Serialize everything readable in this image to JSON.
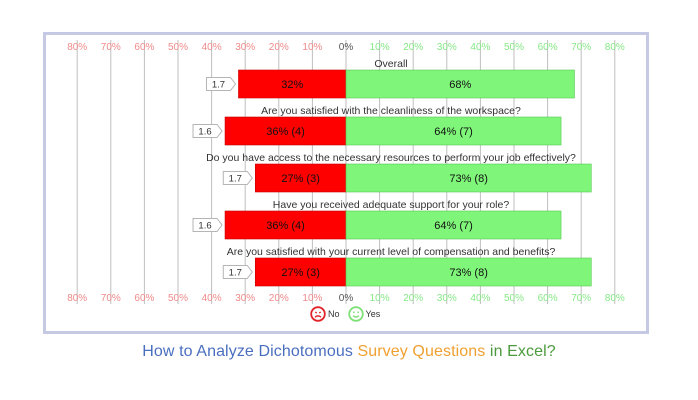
{
  "caption": {
    "part1": "How to Analyze Dichotomous ",
    "part2": "Survey Questions",
    "part3": " in Excel?"
  },
  "colors": {
    "no": "#ff0000",
    "yes": "#7ff57a",
    "no_tick": "#f08a8a",
    "yes_tick": "#86e886",
    "frame": "#c5c9e3",
    "caption_blue": "#4a6fbf",
    "caption_orange": "#f0a030",
    "caption_green": "#4b9a3c"
  },
  "legend": {
    "no_label": "No",
    "yes_label": "Yes",
    "no_icon": "frown-face-icon",
    "yes_icon": "smile-face-icon"
  },
  "chart_data": {
    "type": "bar",
    "orientation": "horizontal-diverging",
    "xlim": [
      -80,
      80
    ],
    "x_ticks": [
      "80%",
      "70%",
      "60%",
      "50%",
      "40%",
      "30%",
      "20%",
      "10%",
      "0%",
      "10%",
      "20%",
      "30%",
      "40%",
      "50%",
      "60%",
      "70%",
      "80%"
    ],
    "x_tick_values": [
      -80,
      -70,
      -60,
      -50,
      -40,
      -30,
      -20,
      -10,
      0,
      10,
      20,
      30,
      40,
      50,
      60,
      70,
      80
    ],
    "grid": true,
    "legend_position": "bottom-center",
    "categories": [
      "Overall",
      "Are you satisfied with the cleanliness of the workspace?",
      "Do you have access to the necessary resources to perform your job effectively?",
      "Have you received adequate support for your role?",
      "Are you satisfied with your current level of compensation and benefits?"
    ],
    "scores": [
      "1.7",
      "1.6",
      "1.7",
      "1.6",
      "1.7"
    ],
    "series": [
      {
        "name": "No",
        "values": [
          32,
          36,
          27,
          36,
          27
        ],
        "labels": [
          "32%",
          "36% (4)",
          "27% (3)",
          "36% (4)",
          "27% (3)"
        ]
      },
      {
        "name": "Yes",
        "values": [
          68,
          64,
          73,
          64,
          73
        ],
        "labels": [
          "68%",
          "64% (7)",
          "73% (8)",
          "64% (7)",
          "73% (8)"
        ]
      }
    ]
  }
}
